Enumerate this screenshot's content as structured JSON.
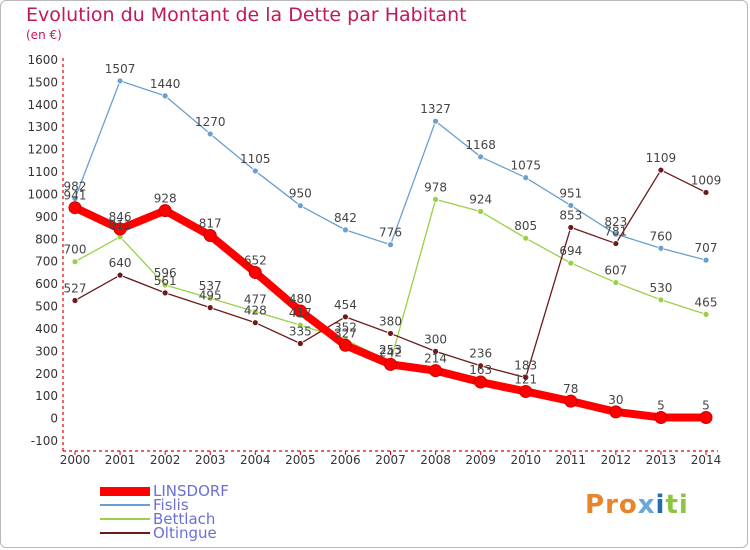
{
  "title": "Evolution du Montant de la Dette par Habitant",
  "subtitle": "(en €)",
  "brand": {
    "text": "Proxiti",
    "letters": [
      {
        "ch": "P",
        "color": "#e8842b"
      },
      {
        "ch": "r",
        "color": "#e8842b"
      },
      {
        "ch": "o",
        "color": "#e8842b"
      },
      {
        "ch": "x",
        "color": "#6aa8d8"
      },
      {
        "ch": "i",
        "color": "#1f6fb2"
      },
      {
        "ch": "t",
        "color": "#8cc63f"
      },
      {
        "ch": "i",
        "color": "#8cc63f"
      }
    ]
  },
  "chart_data": {
    "type": "line",
    "title": "Evolution du Montant de la Dette par Habitant",
    "ylabel": "(en €)",
    "xlabel": "",
    "ylim": [
      -100,
      1600
    ],
    "yticks": [
      -100,
      0,
      100,
      200,
      300,
      400,
      500,
      600,
      700,
      800,
      900,
      1000,
      1100,
      1200,
      1300,
      1400,
      1500,
      1600
    ],
    "categories": [
      "2000",
      "2001",
      "2002",
      "2003",
      "2004",
      "2005",
      "2006",
      "2007",
      "2008",
      "2009",
      "2010",
      "2011",
      "2012",
      "2013",
      "2014"
    ],
    "grid": false,
    "legend_position": "bottom-left",
    "series": [
      {
        "name": "Fislis",
        "color": "#6a9fcf",
        "width": 1.3,
        "marker": 3,
        "values": [
          982,
          1507,
          1440,
          1270,
          1105,
          950,
          842,
          776,
          1327,
          1168,
          1075,
          951,
          823,
          760,
          707
        ]
      },
      {
        "name": "Bettlach",
        "color": "#99d04a",
        "width": 1.3,
        "marker": 3,
        "values": [
          700,
          811,
          596,
          537,
          477,
          417,
          352,
          253,
          978,
          924,
          805,
          694,
          607,
          530,
          465
        ]
      },
      {
        "name": "Oltingue",
        "color": "#6b1a1a",
        "width": 1.3,
        "marker": 3,
        "values": [
          527,
          640,
          561,
          495,
          428,
          335,
          454,
          380,
          300,
          236,
          183,
          853,
          781,
          1109,
          1009
        ]
      },
      {
        "name": "LINSDORF",
        "color": "#ff0000",
        "width": 8,
        "marker": 6,
        "values": [
          941,
          846,
          928,
          817,
          652,
          480,
          327,
          242,
          214,
          163,
          121,
          78,
          30,
          5,
          5
        ]
      }
    ],
    "legend_order": [
      "LINSDORF",
      "Fislis",
      "Bettlach",
      "Oltingue"
    ]
  }
}
